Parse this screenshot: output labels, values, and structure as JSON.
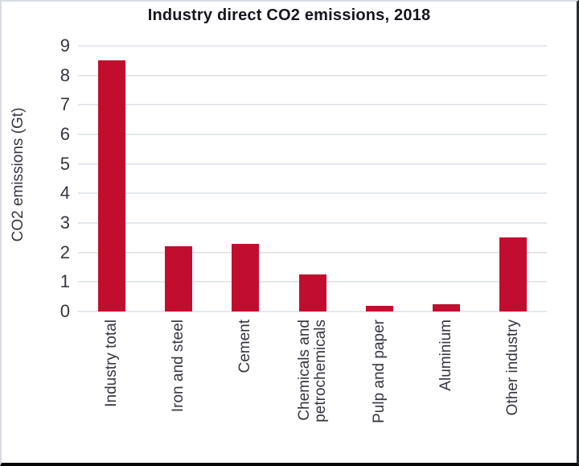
{
  "chart_data": {
    "type": "bar",
    "title": "Industry direct CO2 emissions, 2018",
    "ylabel": "CO2 emissions (Gt)",
    "xlabel": "",
    "categories": [
      "Industry total",
      "Iron and steel",
      "Cement",
      "Chemicals and\npetrochemicals",
      "Pulp and paper",
      "Aluminium",
      "Other industry"
    ],
    "values": [
      8.5,
      2.2,
      2.3,
      1.25,
      0.2,
      0.25,
      2.5
    ],
    "ylim": [
      0,
      9
    ],
    "yticks": [
      0,
      1,
      2,
      3,
      4,
      5,
      6,
      7,
      8,
      9
    ],
    "grid": "horizontal",
    "legend_position": "none",
    "bar_color": "#c20e2e",
    "gridline_color": "#e4e8ec",
    "axis_text_color": "#35363f",
    "title_color": "#16161e"
  }
}
